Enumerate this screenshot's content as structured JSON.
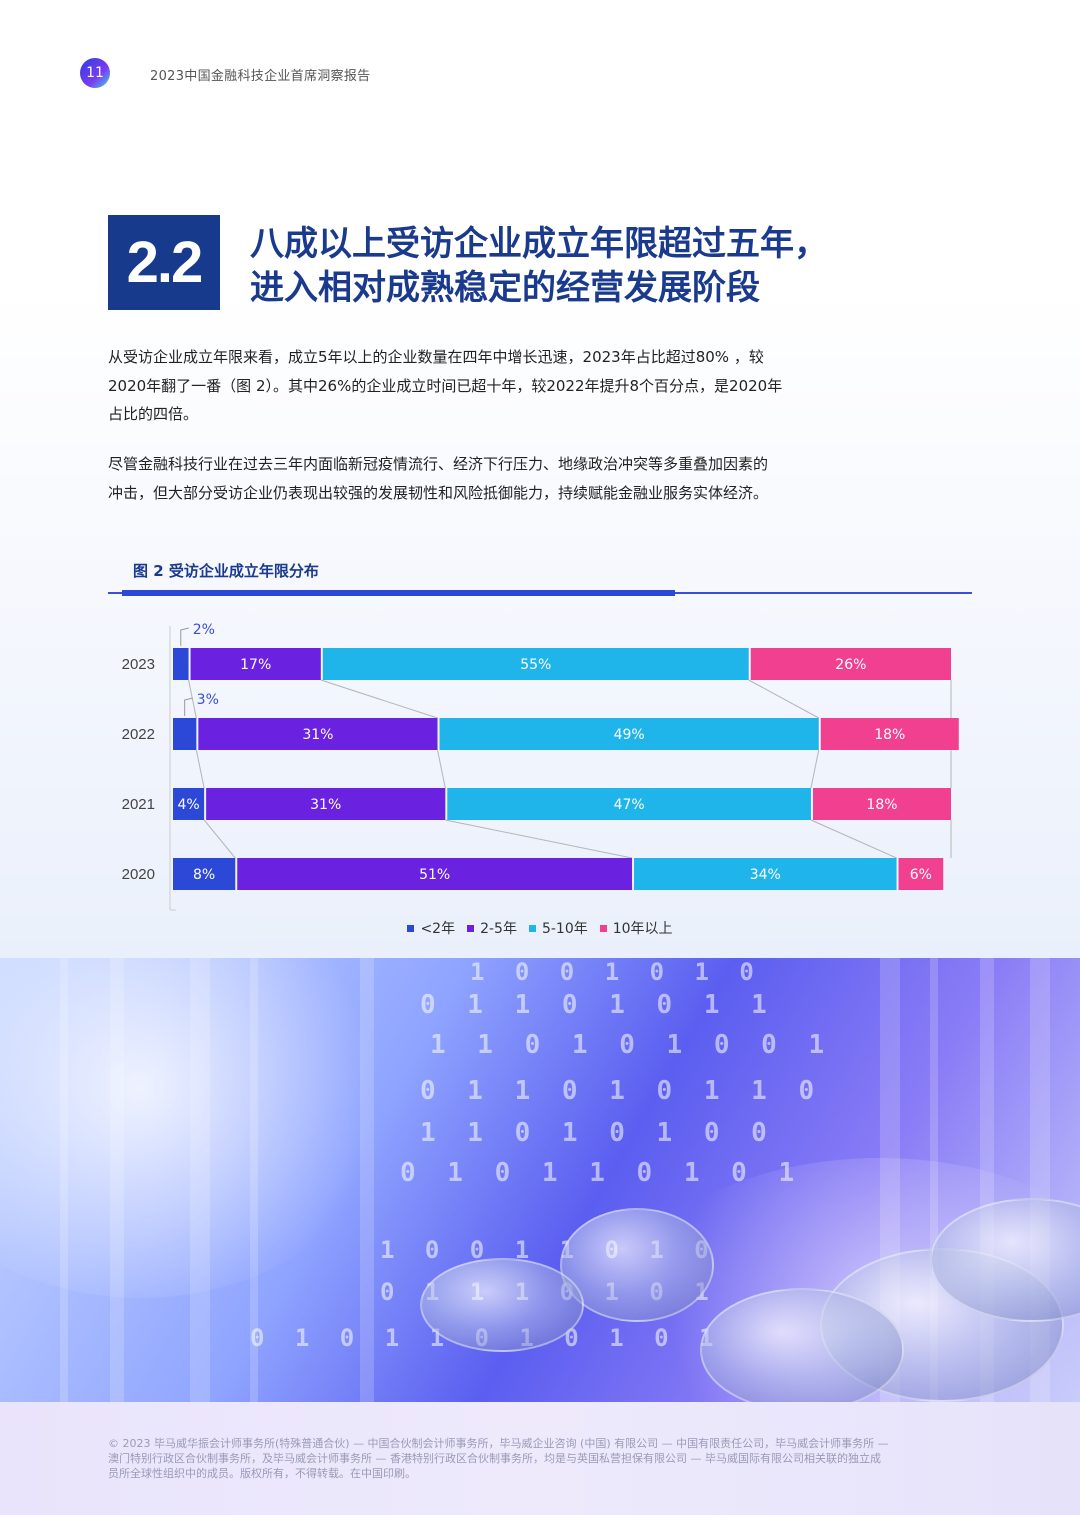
{
  "header": {
    "page_number": "11",
    "doc_title": "2023中国金融科技企业首席洞察报告"
  },
  "section": {
    "number": "2.2",
    "title_line1": "八成以上受访企业成立年限超过五年，",
    "title_line2": "进入相对成熟稳定的经营发展阶段"
  },
  "paragraphs": [
    {
      "line1": "从受访企业成立年限来看，成立5年以上的企业数量在四年中增长迅速，2023年占比超过80% ，较",
      "line2": "2020年翻了一番（图 2）。其中26%的企业成立时间已超十年，较2022年提升8个百分点，是2020年",
      "line3": "占比的四倍。"
    },
    {
      "line1": "尽管金融科技行业在过去三年内面临新冠疫情流行、经济下行压力、地缘政治冲突等多重叠加因素的",
      "line2": "冲击，但大部分受访企业仍表现出较强的发展韧性和风险抵御能力，持续赋能金融业服务实体经济。"
    }
  ],
  "chart_title": "图 2 受访企业成立年限分布",
  "chart_data": {
    "type": "bar",
    "orientation": "horizontal",
    "stacked": "percent",
    "title": "图 2 受访企业成立年限分布",
    "categories": [
      "2023",
      "2022",
      "2021",
      "2020"
    ],
    "series": [
      {
        "name": "<2年",
        "values": [
          2,
          3,
          4,
          8
        ],
        "labels": [
          "2%",
          "3%",
          "4%",
          "8%"
        ],
        "color": "#2b48d6"
      },
      {
        "name": "2-5年",
        "values": [
          17,
          31,
          31,
          51
        ],
        "labels": [
          "17%",
          "31%",
          "31%",
          "51%"
        ],
        "color": "#6a22e0"
      },
      {
        "name": "5-10年",
        "values": [
          55,
          49,
          47,
          34
        ],
        "labels": [
          "55%",
          "49%",
          "47%",
          "34%"
        ],
        "color": "#1fb5ea"
      },
      {
        "name": "10年以上",
        "values": [
          26,
          18,
          18,
          6
        ],
        "labels": [
          "26%",
          "18%",
          "18%",
          "6%"
        ],
        "color": "#f0408f"
      }
    ],
    "xlim": [
      0,
      100
    ],
    "legend": "bottom-center",
    "grid": false
  },
  "hero_digits": [
    "1 0 0 1 0 1 0",
    "0 1 1 0 1 0 1 1",
    "1 1 0 1 0 1 0 0 1",
    "0 1 1 0 1 0 1 1 0",
    "1 1 0 1 0 1 0 0",
    "0 1 0 1 1 0 1 0 1",
    "1 0 0 1 1 0 1 0",
    "0 1 1 1 0 1 0 1",
    "0 1 0 1 1 0 1 0 1 0 1"
  ],
  "footer": {
    "line1": "© 2023 毕马威华振会计师事务所(特殊普通合伙) — 中国合伙制会计师事务所，毕马威企业咨询 (中国) 有限公司 — 中国有限责任公司，毕马威会计师事务所 —",
    "line2": "澳门特别行政区合伙制事务所，及毕马威会计师事务所 — 香港特别行政区合伙制事务所，均是与英国私营担保有限公司 — 毕马威国际有限公司相关联的独立成",
    "line3": "员所全球性组织中的成员。版权所有，不得转载。在中国印刷。"
  }
}
